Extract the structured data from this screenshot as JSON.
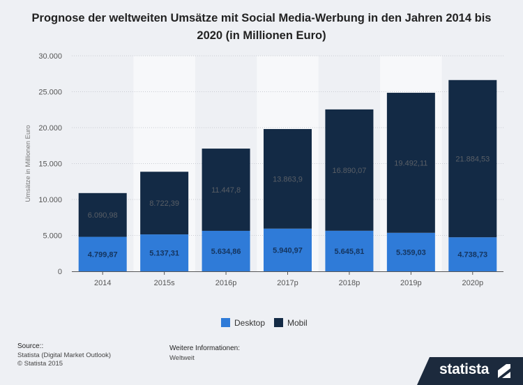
{
  "chart_data": {
    "type": "bar",
    "stacked": true,
    "title": "Prognose der weltweiten Umsätze mit Social Media-Werbung in den Jahren 2014 bis 2020 (in Millionen Euro)",
    "ylabel": "Umsätze in Millionen Euro",
    "xlabel": "",
    "ylim": [
      0,
      30000
    ],
    "yticks": [
      {
        "value": 0,
        "label": "0"
      },
      {
        "value": 5000,
        "label": "5.000"
      },
      {
        "value": 10000,
        "label": "10.000"
      },
      {
        "value": 15000,
        "label": "15.000"
      },
      {
        "value": 20000,
        "label": "20.000"
      },
      {
        "value": 25000,
        "label": "25.000"
      },
      {
        "value": 30000,
        "label": "30.000"
      }
    ],
    "categories": [
      "2014",
      "2015s",
      "2016p",
      "2017p",
      "2018p",
      "2019p",
      "2020p"
    ],
    "series": [
      {
        "name": "Desktop",
        "color": "#2f7bd8",
        "values": [
          4799.87,
          5137.31,
          5634.86,
          5940.97,
          5645.81,
          5359.03,
          4738.73
        ],
        "labels": [
          "4.799,87",
          "5.137,31",
          "5.634,86",
          "5.940,97",
          "5.645,81",
          "5.359,03",
          "4.738,73"
        ]
      },
      {
        "name": "Mobil",
        "color": "#132a45",
        "values": [
          6090.98,
          8722.39,
          11447.8,
          13863.9,
          16890.07,
          19492.11,
          21884.53
        ],
        "labels": [
          "6.090,98",
          "8.722,39",
          "11.447,8",
          "13.863,9",
          "16.890,07",
          "19.492,11",
          "21.884,53"
        ]
      }
    ],
    "legend_position": "bottom-center",
    "grid": true
  },
  "footer": {
    "source_heading": "Source::",
    "source_line1": "Statista (Digital Market Outlook)",
    "source_line2": "© Statista 2015",
    "info_heading": "Weitere Informationen:",
    "info_line1": "Weltweit"
  },
  "logo": {
    "text": "statista"
  }
}
